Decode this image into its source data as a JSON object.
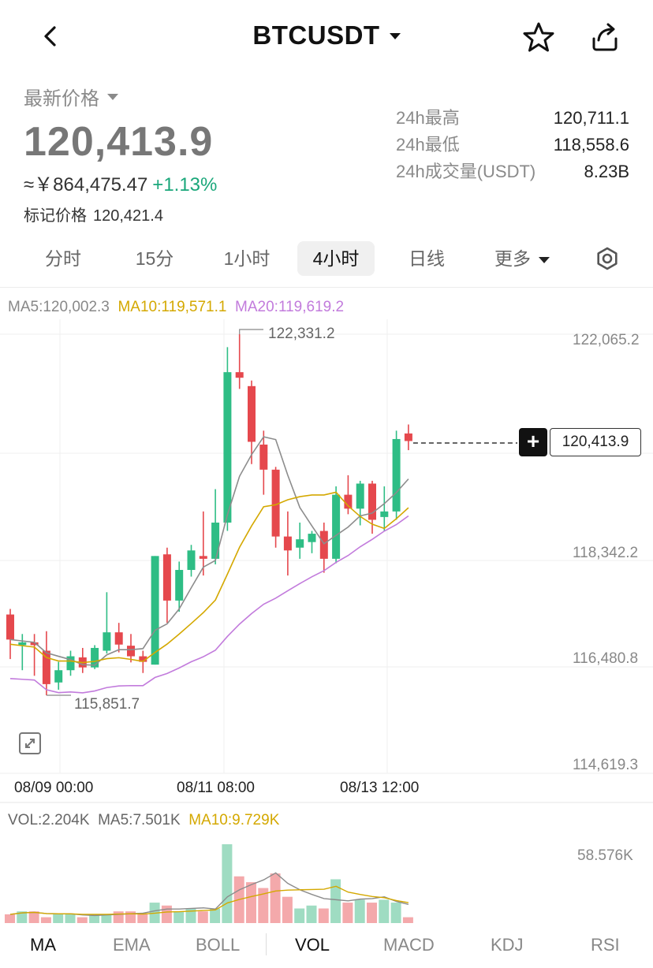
{
  "header": {
    "symbol": "BTCUSDT",
    "icons": {
      "back": "back-chevron-icon",
      "favorite": "star-icon",
      "share": "share-icon"
    }
  },
  "ticker": {
    "latest_label": "最新价格",
    "last_price": "120,413.9",
    "cny_price": "≈￥864,475.47",
    "change_pct": "+1.13%",
    "mark_label": "标记价格",
    "mark_price": "120,421.4",
    "stats": [
      {
        "label": "24h最高",
        "value": "120,711.1"
      },
      {
        "label": "24h最低",
        "value": "118,558.6"
      },
      {
        "label": "24h成交量(USDT)",
        "value": "8.23B"
      }
    ]
  },
  "timeframes": [
    {
      "label": "分时"
    },
    {
      "label": "15分"
    },
    {
      "label": "1小时"
    },
    {
      "label": "4小时",
      "active": true
    },
    {
      "label": "日线"
    },
    {
      "label": "更多"
    }
  ],
  "chart": {
    "ma_legend": {
      "ma5": "MA5:120,002.3",
      "ma10": "MA10:119,571.1",
      "ma20": "MA20:119,619.2"
    },
    "y_labels": [
      "122,065.2",
      "118,342.2",
      "116,480.8",
      "114,619.3"
    ],
    "x_labels": [
      "08/09 00:00",
      "08/11 08:00",
      "08/13 12:00"
    ],
    "high_marker": "122,331.2",
    "low_marker": "115,851.7",
    "current_price_tag": "120,413.9",
    "vol_legend": {
      "vol": "VOL:2.204K",
      "ma5": "MA5:7.501K",
      "ma10": "MA10:9.729K"
    },
    "vol_axis_label": "58.576K",
    "colors": {
      "up": "#2ebd85",
      "down": "#e5484d",
      "ma5": "#8c8c8c",
      "ma10": "#d4a800",
      "ma20": "#c27bdc"
    }
  },
  "chart_data": {
    "type": "candlestick",
    "interval": "4小时",
    "candles": [
      {
        "o": 117300,
        "h": 117400,
        "l": 116500,
        "c": 116850
      },
      {
        "o": 116750,
        "h": 116950,
        "l": 116300,
        "c": 116800
      },
      {
        "o": 116800,
        "h": 116950,
        "l": 116200,
        "c": 116750
      },
      {
        "o": 116650,
        "h": 117000,
        "l": 115850,
        "c": 116050
      },
      {
        "o": 116080,
        "h": 116450,
        "l": 115950,
        "c": 116300
      },
      {
        "o": 116300,
        "h": 116650,
        "l": 116200,
        "c": 116550
      },
      {
        "o": 116530,
        "h": 116700,
        "l": 116250,
        "c": 116350
      },
      {
        "o": 116350,
        "h": 116750,
        "l": 116320,
        "c": 116700
      },
      {
        "o": 116650,
        "h": 117700,
        "l": 116600,
        "c": 116980
      },
      {
        "o": 116980,
        "h": 117150,
        "l": 116620,
        "c": 116760
      },
      {
        "o": 116740,
        "h": 116950,
        "l": 116440,
        "c": 116550
      },
      {
        "o": 116550,
        "h": 116650,
        "l": 116250,
        "c": 116450
      },
      {
        "o": 116400,
        "h": 118350,
        "l": 116400,
        "c": 118350
      },
      {
        "o": 118380,
        "h": 118500,
        "l": 117150,
        "c": 117550
      },
      {
        "o": 117550,
        "h": 118250,
        "l": 117350,
        "c": 118100
      },
      {
        "o": 118100,
        "h": 118550,
        "l": 117980,
        "c": 118450
      },
      {
        "o": 118350,
        "h": 119150,
        "l": 118000,
        "c": 118300
      },
      {
        "o": 118300,
        "h": 119550,
        "l": 118200,
        "c": 118950
      },
      {
        "o": 118950,
        "h": 122100,
        "l": 118800,
        "c": 121650
      },
      {
        "o": 121650,
        "h": 122331,
        "l": 121350,
        "c": 121550
      },
      {
        "o": 121400,
        "h": 121500,
        "l": 120000,
        "c": 120400
      },
      {
        "o": 120350,
        "h": 120600,
        "l": 119450,
        "c": 119900
      },
      {
        "o": 119900,
        "h": 119950,
        "l": 118500,
        "c": 118700
      },
      {
        "o": 118700,
        "h": 119150,
        "l": 118000,
        "c": 118450
      },
      {
        "o": 118500,
        "h": 118950,
        "l": 118300,
        "c": 118650
      },
      {
        "o": 118600,
        "h": 118800,
        "l": 118400,
        "c": 118750
      },
      {
        "o": 118800,
        "h": 118950,
        "l": 118050,
        "c": 118300
      },
      {
        "o": 118300,
        "h": 119600,
        "l": 118220,
        "c": 119450
      },
      {
        "o": 119450,
        "h": 119800,
        "l": 119100,
        "c": 119200
      },
      {
        "o": 119200,
        "h": 119700,
        "l": 118900,
        "c": 119650
      },
      {
        "o": 119650,
        "h": 119700,
        "l": 118750,
        "c": 119000
      },
      {
        "o": 119050,
        "h": 119600,
        "l": 118800,
        "c": 119150
      },
      {
        "o": 119150,
        "h": 120600,
        "l": 119000,
        "c": 120450
      },
      {
        "o": 120550,
        "h": 120711,
        "l": 120250,
        "c": 120414
      }
    ],
    "volume_colors": "up/down by candle",
    "y_axis_range": [
      114619.3,
      122331.2
    ],
    "volume_max": "58.576K",
    "moving_averages": [
      "MA5",
      "MA10",
      "MA20"
    ]
  },
  "indicators": [
    {
      "label": "MA",
      "active": true
    },
    {
      "label": "EMA"
    },
    {
      "label": "BOLL"
    },
    {
      "label": "VOL",
      "active": true
    },
    {
      "label": "MACD"
    },
    {
      "label": "KDJ"
    },
    {
      "label": "RSI"
    }
  ]
}
